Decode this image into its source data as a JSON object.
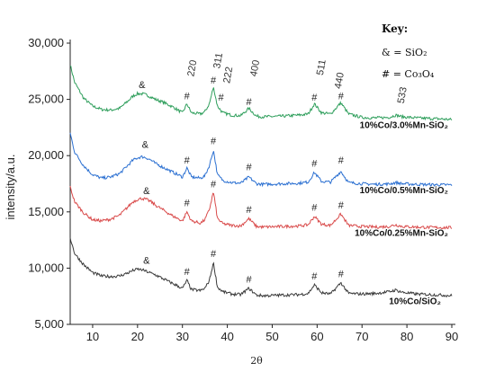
{
  "chart_data": {
    "type": "line",
    "xlabel": "2θ",
    "ylabel": "intensity/a.u.",
    "xlim": [
      5,
      90
    ],
    "ylim": [
      5000,
      30000
    ],
    "x_ticks": [
      "10",
      "20",
      "30",
      "40",
      "50",
      "60",
      "70",
      "80",
      "90"
    ],
    "y_ticks": [
      "5,000",
      "10,000",
      "15,000",
      "20,000",
      "25,000",
      "30,000"
    ],
    "grid": false,
    "legend_placement": "top-right",
    "key": {
      "title": "Key:",
      "entries": [
        "& = SiO₂",
        "#  = Co₃O₄"
      ]
    },
    "series": [
      {
        "name": "10%Co/3.0%Mn-SiO₂",
        "color": "#2e9e5b",
        "baseline": 23200,
        "x": [
          5,
          6,
          8,
          10,
          12,
          14,
          16,
          18,
          19,
          20,
          21,
          22,
          23,
          24,
          26,
          28,
          30,
          31,
          32,
          34,
          35,
          36,
          36.9,
          37.8,
          39,
          41,
          43,
          44.8,
          46.5,
          48,
          52,
          56,
          58,
          59.4,
          61,
          63,
          65.3,
          67,
          70,
          73,
          76,
          77.5,
          79,
          82,
          85,
          88,
          90
        ],
        "y": [
          28100,
          26500,
          25100,
          24400,
          24100,
          24050,
          24200,
          24900,
          25300,
          25500,
          25500,
          25400,
          25200,
          25000,
          24700,
          24300,
          23800,
          24600,
          23800,
          23700,
          23900,
          24600,
          26100,
          24400,
          23800,
          23600,
          23550,
          24200,
          23500,
          23450,
          23500,
          23600,
          23700,
          24600,
          23800,
          23700,
          24700,
          23700,
          23400,
          23350,
          23400,
          23600,
          23450,
          23350,
          23300,
          23250,
          23200
        ]
      },
      {
        "name": "10%Co/0.5%Mn-SiO₂",
        "color": "#2a6fd1",
        "baseline": 17400,
        "x": [
          5,
          6,
          8,
          10,
          12,
          14,
          16,
          18,
          19,
          20,
          21,
          22,
          23,
          24,
          26,
          28,
          30,
          31,
          32,
          34,
          35,
          36,
          36.9,
          37.8,
          39,
          41,
          43,
          44.8,
          46.5,
          48,
          52,
          56,
          58,
          59.4,
          61,
          63,
          65.3,
          67,
          70,
          73,
          76,
          77.5,
          79,
          82,
          85,
          88,
          90
        ],
        "y": [
          22000,
          20300,
          19100,
          18300,
          18000,
          18100,
          18400,
          19200,
          19600,
          19800,
          19900,
          19800,
          19600,
          19300,
          18900,
          18500,
          18100,
          18900,
          18100,
          18000,
          18200,
          19100,
          20500,
          18300,
          17800,
          17600,
          17550,
          18100,
          17500,
          17450,
          17500,
          17550,
          17650,
          18500,
          17700,
          17650,
          18600,
          17600,
          17500,
          17450,
          17480,
          17600,
          17500,
          17450,
          17420,
          17400,
          17400
        ]
      },
      {
        "name": "10%Co/0.25%Mn-SiO₂",
        "color": "#d94a4a",
        "baseline": 13600,
        "x": [
          5,
          6,
          8,
          10,
          12,
          14,
          16,
          18,
          19,
          20,
          21,
          22,
          23,
          24,
          26,
          28,
          30,
          31,
          32,
          34,
          35,
          36,
          36.9,
          37.8,
          39,
          41,
          43,
          44.8,
          46.5,
          48,
          52,
          56,
          58,
          59.4,
          61,
          63,
          65.3,
          67,
          70,
          73,
          76,
          77.5,
          79,
          82,
          85,
          88,
          90
        ],
        "y": [
          17200,
          15900,
          14900,
          14300,
          14200,
          14350,
          14700,
          15500,
          15900,
          16100,
          16200,
          16100,
          15900,
          15600,
          15100,
          14600,
          14200,
          15000,
          14200,
          14000,
          14300,
          15200,
          16800,
          14400,
          13950,
          13800,
          13750,
          14400,
          13700,
          13650,
          13700,
          13750,
          13850,
          14600,
          13900,
          13800,
          14800,
          13800,
          13700,
          13650,
          13700,
          13850,
          13700,
          13650,
          13620,
          13600,
          13600
        ]
      },
      {
        "name": "10%Co/SiO₂",
        "color": "#3a3a3a",
        "baseline": 7500,
        "x": [
          5,
          6,
          8,
          10,
          12,
          14,
          16,
          18,
          19,
          20,
          21,
          22,
          23,
          24,
          26,
          28,
          30,
          31,
          32,
          34,
          35,
          36,
          36.9,
          37.8,
          39,
          41,
          43,
          44.8,
          46.5,
          48,
          52,
          56,
          58,
          59.4,
          61,
          63,
          65.3,
          67,
          70,
          73,
          76,
          77.5,
          79,
          82,
          85,
          88,
          90
        ],
        "y": [
          12700,
          11300,
          10300,
          9600,
          9300,
          9250,
          9300,
          9600,
          9800,
          9900,
          9850,
          9700,
          9550,
          9400,
          9000,
          8600,
          8200,
          8900,
          8100,
          8000,
          8200,
          8900,
          10500,
          8300,
          7900,
          7700,
          7650,
          8200,
          7600,
          7550,
          7600,
          7650,
          7750,
          8500,
          7800,
          7700,
          8700,
          7750,
          7700,
          7750,
          7900,
          8050,
          7850,
          7700,
          7650,
          7600,
          7550
        ]
      }
    ],
    "peak_markers": [
      {
        "series": 0,
        "x": 21,
        "y": 26000,
        "symbol": "&"
      },
      {
        "series": 0,
        "x": 31,
        "y": 25000,
        "symbol": "#"
      },
      {
        "series": 0,
        "x": 36.9,
        "y": 26400,
        "symbol": "#"
      },
      {
        "series": 0,
        "x": 38.6,
        "y": 24900,
        "symbol": "#"
      },
      {
        "series": 0,
        "x": 44.8,
        "y": 24500,
        "symbol": "#"
      },
      {
        "series": 0,
        "x": 59.4,
        "y": 24900,
        "symbol": "#"
      },
      {
        "series": 0,
        "x": 65.3,
        "y": 25000,
        "symbol": "#"
      },
      {
        "series": 1,
        "x": 21.7,
        "y": 20700,
        "symbol": "&"
      },
      {
        "series": 1,
        "x": 31,
        "y": 19300,
        "symbol": "#"
      },
      {
        "series": 1,
        "x": 36.9,
        "y": 21000,
        "symbol": "#"
      },
      {
        "series": 1,
        "x": 44.8,
        "y": 18700,
        "symbol": "#"
      },
      {
        "series": 1,
        "x": 59.4,
        "y": 19000,
        "symbol": "#"
      },
      {
        "series": 1,
        "x": 65.3,
        "y": 19300,
        "symbol": "#"
      },
      {
        "series": 2,
        "x": 22,
        "y": 16600,
        "symbol": "&"
      },
      {
        "series": 2,
        "x": 31,
        "y": 15500,
        "symbol": "#"
      },
      {
        "series": 2,
        "x": 36.9,
        "y": 17200,
        "symbol": "#"
      },
      {
        "series": 2,
        "x": 44.8,
        "y": 14900,
        "symbol": "#"
      },
      {
        "series": 2,
        "x": 59.4,
        "y": 15100,
        "symbol": "#"
      },
      {
        "series": 2,
        "x": 65.3,
        "y": 15300,
        "symbol": "#"
      },
      {
        "series": 3,
        "x": 22,
        "y": 10400,
        "symbol": "&"
      },
      {
        "series": 3,
        "x": 31,
        "y": 9400,
        "symbol": "#"
      },
      {
        "series": 3,
        "x": 36.9,
        "y": 11000,
        "symbol": "#"
      },
      {
        "series": 3,
        "x": 44.8,
        "y": 8700,
        "symbol": "#"
      },
      {
        "series": 3,
        "x": 59.4,
        "y": 9000,
        "symbol": "#"
      },
      {
        "series": 3,
        "x": 65.3,
        "y": 9200,
        "symbol": "#"
      }
    ],
    "hkl_labels": [
      {
        "text": "220",
        "x": 32.5,
        "y": 27000
      },
      {
        "text": "311",
        "x": 38.3,
        "y": 27700
      },
      {
        "text": "222",
        "x": 40.5,
        "y": 26400
      },
      {
        "text": "400",
        "x": 46.5,
        "y": 27000
      },
      {
        "text": "511",
        "x": 61.3,
        "y": 27100
      },
      {
        "text": "440",
        "x": 65.3,
        "y": 25900
      },
      {
        "text": "533",
        "x": 79.3,
        "y": 24600
      }
    ]
  }
}
